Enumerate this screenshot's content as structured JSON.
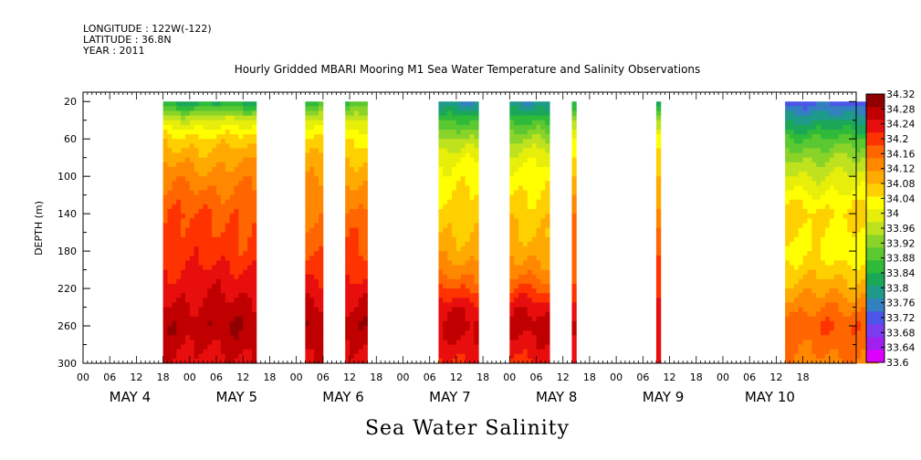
{
  "header": {
    "longitude": "LONGITUDE : 122W(-122)",
    "latitude": "LATITUDE : 36.8N",
    "year": "YEAR : 2011"
  },
  "chart_data": {
    "type": "heatmap",
    "title": "Hourly Gridded MBARI Mooring M1 Sea Water Temperature and Salinity Observations",
    "bottom_title": "Sea Water Salinity",
    "ylabel": "DEPTH (m)",
    "x_range_hours": [
      -12,
      162
    ],
    "y_range_depth": [
      10,
      300
    ],
    "y_ticks": [
      20,
      60,
      100,
      140,
      180,
      220,
      260,
      300
    ],
    "x_hour_ticks": [
      "00",
      "06",
      "12",
      "18",
      "00",
      "06",
      "12",
      "18",
      "00",
      "06",
      "12",
      "18",
      "00",
      "06",
      "12",
      "18",
      "00",
      "06",
      "12",
      "18",
      "00",
      "06",
      "12",
      "18",
      "00",
      "06",
      "12",
      "18"
    ],
    "day_labels": [
      "MAY  4",
      "MAY  5",
      "MAY  6",
      "MAY  7",
      "MAY  8",
      "MAY  9",
      "MAY 10"
    ],
    "colorbar_labels": [
      "34.32",
      "34.28",
      "34.24",
      "34.2",
      "34.16",
      "34.12",
      "34.08",
      "34.04",
      "34",
      "33.96",
      "33.92",
      "33.88",
      "33.84",
      "33.8",
      "33.76",
      "33.72",
      "33.68",
      "33.64",
      "33.6"
    ],
    "colorbar_min": 33.6,
    "colorbar_max": 34.32,
    "colors": [
      "#dd00ff",
      "#a020f0",
      "#7b3cf0",
      "#4b55e8",
      "#3380c0",
      "#1f9a8a",
      "#1aa858",
      "#2fba3a",
      "#5ac830",
      "#8ad42a",
      "#bfe21e",
      "#e6ee0a",
      "#ffff00",
      "#ffd000",
      "#ffaa00",
      "#ff8800",
      "#ff6600",
      "#ff3300",
      "#e80e0e",
      "#c00000",
      "#900000"
    ],
    "segments": [
      {
        "start_hour": 6,
        "end_hour": 27
      },
      {
        "start_hour": 38,
        "end_hour": 42
      },
      {
        "start_hour": 47,
        "end_hour": 52
      },
      {
        "start_hour": 68,
        "end_hour": 77
      },
      {
        "start_hour": 84,
        "end_hour": 93
      },
      {
        "start_hour": 98,
        "end_hour": 99
      },
      {
        "start_hour": 117,
        "end_hour": 118
      },
      {
        "start_hour": 146,
        "end_hour": 167
      }
    ],
    "profiles_depths": [
      20,
      40,
      60,
      80,
      100,
      120,
      140,
      160,
      180,
      200,
      220,
      240,
      260,
      280,
      300
    ],
    "profiles": [
      {
        "from_hour": 6,
        "to_hour": 27,
        "values": [
          33.82,
          33.98,
          34.06,
          34.1,
          34.13,
          34.16,
          34.18,
          34.19,
          34.2,
          34.22,
          34.24,
          34.26,
          34.28,
          34.26,
          34.24
        ]
      },
      {
        "from_hour": 38,
        "to_hour": 52,
        "values": [
          33.86,
          33.98,
          34.04,
          34.08,
          34.11,
          34.13,
          34.15,
          34.17,
          34.18,
          34.2,
          34.23,
          34.26,
          34.28,
          34.26,
          34.24
        ]
      },
      {
        "from_hour": 68,
        "to_hour": 93,
        "values": [
          33.76,
          33.86,
          33.94,
          34.0,
          34.03,
          34.05,
          34.07,
          34.08,
          34.1,
          34.13,
          34.18,
          34.24,
          34.26,
          34.24,
          34.21
        ]
      },
      {
        "from_hour": 98,
        "to_hour": 118,
        "values": [
          33.82,
          33.94,
          34.02,
          34.06,
          34.09,
          34.11,
          34.13,
          34.15,
          34.16,
          34.18,
          34.2,
          34.24,
          34.26,
          34.24,
          34.22
        ]
      },
      {
        "from_hour": 146,
        "to_hour": 167,
        "values": [
          33.72,
          33.8,
          33.88,
          33.94,
          33.98,
          34.02,
          34.06,
          34.04,
          34.03,
          34.06,
          34.1,
          34.14,
          34.18,
          34.16,
          34.14
        ]
      }
    ]
  }
}
